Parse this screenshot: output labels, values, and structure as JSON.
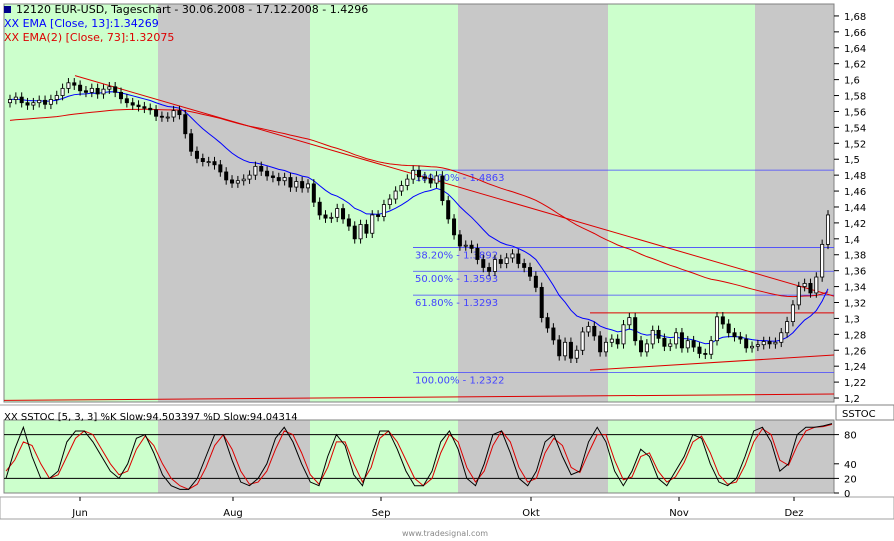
{
  "header": {
    "symbol_line": "12120  EUR-USD, Tageschart - 30.06.2008 - 17.12.2008 - 1.4296",
    "ema1_label": "XX EMA [Close, 13]:1.34269",
    "ema2_label": "XX EMA(2) [Close, 73]:1.32075"
  },
  "sstoc": {
    "label": "XX SSTOC [5, 3, 3] %K Slow:94.503397 %D Slow:94.04314",
    "tab": "SSTOC",
    "ticks": [
      "80",
      "40",
      "20",
      "0"
    ]
  },
  "watermark": "www.tradesignal.com",
  "fib_labels": [
    "100.00% - 1.4863",
    "38.20% - 1.3892",
    "50.00% - 1.3593",
    "61.80% - 1.3293",
    "100.00% - 1.2322"
  ],
  "colors": {
    "up_candle": "#000000",
    "down_candle": "#000000",
    "ema_fast": "#0000ff",
    "ema_slow": "#dd0000",
    "trendline": "#dd0000",
    "fib": "#4444ff",
    "green_band": "#ccffcc",
    "grey_band": "#c8c8c8",
    "stoch_k": "#000000",
    "stoch_d": "#dd0000"
  },
  "chart_data": {
    "type": "candlestick",
    "instrument": "EUR-USD",
    "period": "30.06.2008 - 17.12.2008",
    "last": 1.4296,
    "y_ticks": [
      "1,68",
      "1,66",
      "1,64",
      "1,62",
      "1,6",
      "1,58",
      "1,56",
      "1,54",
      "1,52",
      "1,5",
      "1,48",
      "1,46",
      "1,44",
      "1,42",
      "1,4",
      "1,38",
      "1,36",
      "1,34",
      "1,32",
      "1,3",
      "1,28",
      "1,26",
      "1,24",
      "1,22",
      "1,2"
    ],
    "ylim": [
      1.195,
      1.695
    ],
    "x_labels": [
      "Jun",
      "Aug",
      "Sep",
      "Okt",
      "Nov",
      "Dez"
    ],
    "closes": [
      1.575,
      1.578,
      1.571,
      1.568,
      1.571,
      1.574,
      1.569,
      1.575,
      1.58,
      1.589,
      1.596,
      1.593,
      1.586,
      1.584,
      1.589,
      1.582,
      1.588,
      1.591,
      1.584,
      1.576,
      1.571,
      1.568,
      1.566,
      1.564,
      1.562,
      1.554,
      1.553,
      1.553,
      1.561,
      1.556,
      1.532,
      1.51,
      1.501,
      1.497,
      1.497,
      1.493,
      1.484,
      1.474,
      1.47,
      1.473,
      1.475,
      1.48,
      1.491,
      1.485,
      1.479,
      1.477,
      1.473,
      1.477,
      1.465,
      1.472,
      1.464,
      1.469,
      1.446,
      1.43,
      1.426,
      1.427,
      1.438,
      1.425,
      1.416,
      1.4,
      1.418,
      1.407,
      1.43,
      1.428,
      1.443,
      1.45,
      1.46,
      1.467,
      1.475,
      1.486,
      1.478,
      1.476,
      1.47,
      1.479,
      1.448,
      1.425,
      1.405,
      1.391,
      1.392,
      1.388,
      1.374,
      1.364,
      1.359,
      1.374,
      1.369,
      1.376,
      1.381,
      1.369,
      1.364,
      1.353,
      1.339,
      1.301,
      1.288,
      1.273,
      1.253,
      1.27,
      1.25,
      1.26,
      1.283,
      1.29,
      1.278,
      1.258,
      1.27,
      1.274,
      1.268,
      1.292,
      1.301,
      1.272,
      1.258,
      1.268,
      1.285,
      1.275,
      1.265,
      1.268,
      1.282,
      1.263,
      1.272,
      1.264,
      1.256,
      1.255,
      1.272,
      1.302,
      1.293,
      1.282,
      1.277,
      1.274,
      1.263,
      1.265,
      1.267,
      1.271,
      1.268,
      1.27,
      1.282,
      1.296,
      1.317,
      1.34,
      1.344,
      1.332,
      1.352,
      1.393,
      1.43
    ],
    "stoch_k": [
      20,
      60,
      90,
      50,
      20,
      20,
      30,
      70,
      85,
      85,
      70,
      50,
      30,
      20,
      40,
      75,
      80,
      55,
      25,
      10,
      5,
      5,
      20,
      50,
      80,
      80,
      45,
      15,
      10,
      20,
      40,
      75,
      90,
      70,
      40,
      15,
      10,
      50,
      80,
      65,
      25,
      10,
      50,
      85,
      85,
      60,
      30,
      10,
      10,
      30,
      70,
      85,
      60,
      20,
      10,
      40,
      80,
      85,
      55,
      20,
      10,
      30,
      70,
      80,
      50,
      25,
      30,
      70,
      90,
      70,
      30,
      10,
      30,
      60,
      50,
      20,
      10,
      30,
      50,
      80,
      75,
      40,
      15,
      10,
      20,
      50,
      85,
      90,
      70,
      30,
      40,
      80,
      90,
      90,
      92,
      95
    ],
    "stoch_d": [
      30,
      45,
      70,
      65,
      40,
      20,
      25,
      50,
      75,
      85,
      80,
      60,
      40,
      25,
      30,
      60,
      78,
      65,
      40,
      20,
      10,
      5,
      12,
      35,
      65,
      80,
      60,
      30,
      12,
      15,
      30,
      60,
      85,
      80,
      55,
      25,
      12,
      35,
      70,
      70,
      40,
      15,
      35,
      75,
      85,
      70,
      45,
      20,
      10,
      20,
      55,
      80,
      70,
      35,
      15,
      30,
      65,
      85,
      70,
      35,
      15,
      20,
      55,
      75,
      65,
      35,
      28,
      55,
      80,
      80,
      45,
      18,
      22,
      50,
      55,
      30,
      15,
      22,
      42,
      70,
      78,
      55,
      25,
      12,
      15,
      38,
      70,
      88,
      80,
      45,
      38,
      65,
      85,
      90,
      91,
      94
    ],
    "stoch_ylim": [
      0,
      100
    ],
    "fib": [
      {
        "label": "100.00% - 1.4863",
        "value": 1.4863
      },
      {
        "label": "38.20% - 1.3892",
        "value": 1.3892
      },
      {
        "label": "50.00% - 1.3593",
        "value": 1.3593
      },
      {
        "label": "61.80% - 1.3293",
        "value": 1.3293
      },
      {
        "label": "100.00% - 1.2322",
        "value": 1.2322
      }
    ]
  }
}
